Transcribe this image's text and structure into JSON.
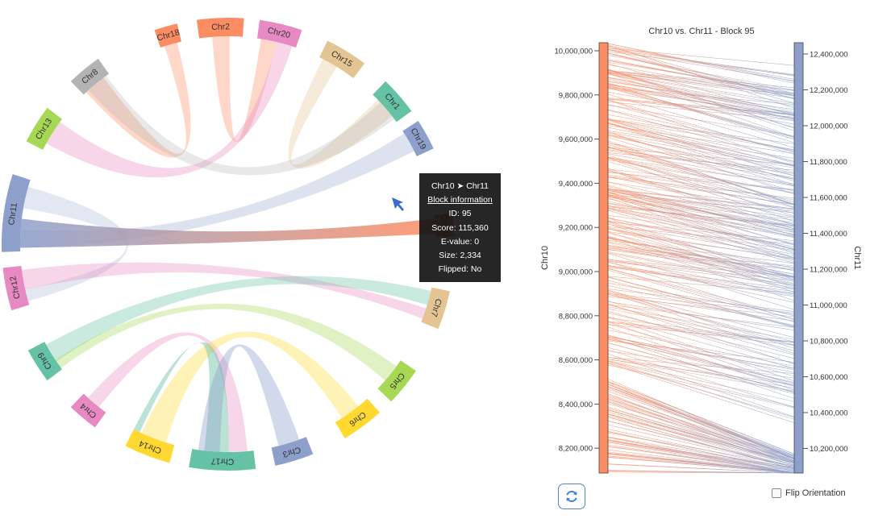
{
  "circos": {
    "chromosomes": [
      {
        "label": "Chr10",
        "color": "#fc8d62"
      },
      {
        "label": "Chr7",
        "color": "#e5c494"
      },
      {
        "label": "Chr5",
        "color": "#a6d854"
      },
      {
        "label": "Chr6",
        "color": "#ffd92f"
      },
      {
        "label": "Chr3",
        "color": "#8da0cb"
      },
      {
        "label": "Chr17",
        "color": "#66c2a5"
      },
      {
        "label": "Chr14",
        "color": "#ffd92f"
      },
      {
        "label": "Chr4",
        "color": "#e78ac3"
      },
      {
        "label": "Chr9",
        "color": "#66c2a5"
      },
      {
        "label": "Chr12",
        "color": "#e78ac3"
      },
      {
        "label": "Chr11",
        "color": "#8da0cb"
      },
      {
        "label": "Chr13",
        "color": "#a6d854"
      },
      {
        "label": "Chr8",
        "color": "#b3b3b3"
      },
      {
        "label": "Chr18",
        "color": "#fc8d62"
      },
      {
        "label": "Chr2",
        "color": "#fc8d62"
      },
      {
        "label": "Chr20",
        "color": "#e78ac3"
      },
      {
        "label": "Chr15",
        "color": "#e5c494"
      },
      {
        "label": "Chr1",
        "color": "#66c2a5"
      },
      {
        "label": "Chr19",
        "color": "#8da0cb"
      }
    ]
  },
  "tooltip": {
    "title": "Chr10 ➤ Chr11",
    "subtitle": "Block information",
    "id": "ID: 95",
    "score": "Score: 115,360",
    "evalue": "E-value: 0",
    "size": "Size: 2,334",
    "flipped": "Flipped: No"
  },
  "linear": {
    "title": "Chr10 vs. Chr11 - Block 95",
    "left_axis_label": "Chr10",
    "right_axis_label": "Chr11",
    "left_ticks": [
      "10,000,000",
      "9,800,000",
      "9,600,000",
      "9,400,000",
      "9,200,000",
      "9,000,000",
      "8,800,000",
      "8,600,000",
      "8,400,000",
      "8,200,000"
    ],
    "right_ticks": [
      "12,400,000",
      "12,200,000",
      "12,000,000",
      "11,800,000",
      "11,600,000",
      "11,400,000",
      "11,200,000",
      "11,000,000",
      "10,800,000",
      "10,600,000",
      "10,400,000",
      "10,200,000"
    ],
    "left_color": "#fc8d62",
    "right_color": "#8da0cb"
  },
  "controls": {
    "flip_label": "Flip Orientation",
    "refresh_icon": "refresh-icon"
  }
}
